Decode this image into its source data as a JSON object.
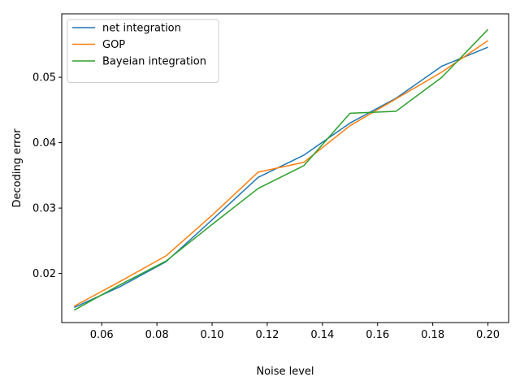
{
  "chart_data": {
    "type": "line",
    "title": "",
    "xlabel": "Noise level",
    "ylabel": "Decoding error",
    "xlim": [
      0.0455,
      0.2075
    ],
    "ylim": [
      0.0125,
      0.0597
    ],
    "xticks": [
      0.06,
      0.08,
      0.1,
      0.12,
      0.14,
      0.16,
      0.18,
      0.2
    ],
    "xtick_labels": [
      "0.06",
      "0.08",
      "0.10",
      "0.12",
      "0.14",
      "0.16",
      "0.18",
      "0.20"
    ],
    "yticks": [
      0.02,
      0.03,
      0.04,
      0.05
    ],
    "ytick_labels": [
      "0.02",
      "0.03",
      "0.04",
      "0.05"
    ],
    "grid": false,
    "legend_position": "top-left",
    "series": [
      {
        "name": "net integration",
        "color": "#1f77b4",
        "x": [
          0.05,
          0.0667,
          0.0833,
          0.1,
          0.1167,
          0.1333,
          0.15,
          0.1667,
          0.1833,
          0.2
        ],
        "y": [
          0.0148,
          0.018,
          0.0218,
          0.0282,
          0.0347,
          0.0381,
          0.043,
          0.0468,
          0.0517,
          0.0546
        ]
      },
      {
        "name": "GOP",
        "color": "#ff7f0e",
        "x": [
          0.05,
          0.0667,
          0.0833,
          0.1,
          0.1167,
          0.1333,
          0.15,
          0.1667,
          0.1833,
          0.2
        ],
        "y": [
          0.015,
          0.0188,
          0.0227,
          0.0289,
          0.0355,
          0.037,
          0.0426,
          0.0467,
          0.0508,
          0.0556
        ]
      },
      {
        "name": "Bayeian integration",
        "color": "#2ca02c",
        "x": [
          0.05,
          0.0667,
          0.0833,
          0.1,
          0.1167,
          0.1333,
          0.15,
          0.1667,
          0.1833,
          0.2
        ],
        "y": [
          0.0144,
          0.0183,
          0.0219,
          0.0275,
          0.033,
          0.0365,
          0.0445,
          0.0448,
          0.05,
          0.0573
        ]
      }
    ]
  }
}
